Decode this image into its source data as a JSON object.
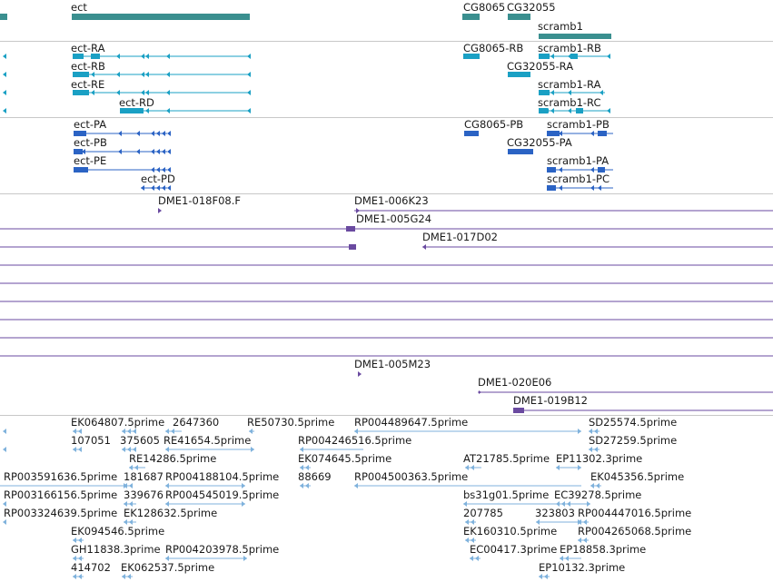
{
  "colors": {
    "gene": "#3a8f8f",
    "transcript": "#1aa0c4",
    "protein": "#2b63c4",
    "bac": "#6a4aa0",
    "est": "#7fb2dc",
    "separator": "#c8c8c8"
  },
  "tracks": {
    "genes": {
      "features": [
        {
          "label": "ect"
        },
        {
          "label": "CG8065"
        },
        {
          "label": "CG32055"
        },
        {
          "label": "scramb1"
        }
      ]
    },
    "transcripts": {
      "features": [
        {
          "label": "ect-RA"
        },
        {
          "label": "ect-RB"
        },
        {
          "label": "ect-RE"
        },
        {
          "label": "ect-RD"
        },
        {
          "label": "CG8065-RB"
        },
        {
          "label": "CG32055-RA"
        },
        {
          "label": "scramb1-RB"
        },
        {
          "label": "scramb1-RA"
        },
        {
          "label": "scramb1-RC"
        }
      ]
    },
    "proteins": {
      "features": [
        {
          "label": "ect-PA"
        },
        {
          "label": "ect-PB"
        },
        {
          "label": "ect-PE"
        },
        {
          "label": "ect-PD"
        },
        {
          "label": "CG8065-PB"
        },
        {
          "label": "CG32055-PA"
        },
        {
          "label": "scramb1-PB"
        },
        {
          "label": "scramb1-PA"
        },
        {
          "label": "scramb1-PC"
        }
      ]
    },
    "bacs": {
      "features": [
        {
          "label": "DME1-018F08.F"
        },
        {
          "label": "DME1-006K23"
        },
        {
          "label": "DME1-005G24"
        },
        {
          "label": "DME1-017D02"
        },
        {
          "label": "DME1-005M23"
        },
        {
          "label": "DME1-020E06"
        },
        {
          "label": "DME1-019B12"
        }
      ]
    },
    "ests": {
      "features": [
        {
          "label": "EK064807.5prime"
        },
        {
          "label": "2647360"
        },
        {
          "label": "RE50730.5prime"
        },
        {
          "label": "RP004489647.5prime"
        },
        {
          "label": "SD25574.5prime"
        },
        {
          "label": "107051"
        },
        {
          "label": "375605"
        },
        {
          "label": "RE41654.5prime"
        },
        {
          "label": "RP004246516.5prime"
        },
        {
          "label": "SD27259.5prime"
        },
        {
          "label": "RE14286.5prime"
        },
        {
          "label": "EK074645.5prime"
        },
        {
          "label": "AT21785.5prime"
        },
        {
          "label": "EP11302.3prime"
        },
        {
          "label": "RP003591636.5prime"
        },
        {
          "label": "181687"
        },
        {
          "label": "RP004188104.5prime"
        },
        {
          "label": "88669"
        },
        {
          "label": "RP004500363.5prime"
        },
        {
          "label": "EK045356.5prime"
        },
        {
          "label": "RP003166156.5prime"
        },
        {
          "label": "339676"
        },
        {
          "label": "RP004545019.5prime"
        },
        {
          "label": "bs31g01.5prime"
        },
        {
          "label": "EC39278.5prime"
        },
        {
          "label": "RP003324639.5prime"
        },
        {
          "label": "EK128632.5prime"
        },
        {
          "label": "207785"
        },
        {
          "label": "323803"
        },
        {
          "label": "RP004447016.5prime"
        },
        {
          "label": "EK094546.5prime"
        },
        {
          "label": "EK160310.5prime"
        },
        {
          "label": "RP004265068.5prime"
        },
        {
          "label": "GH11838.3prime"
        },
        {
          "label": "RP004203978.5prime"
        },
        {
          "label": "EC00417.3prime"
        },
        {
          "label": "EP18858.3prime"
        },
        {
          "label": "414702"
        },
        {
          "label": "EK062537.5prime"
        },
        {
          "label": "EP10132.3prime"
        }
      ]
    }
  }
}
